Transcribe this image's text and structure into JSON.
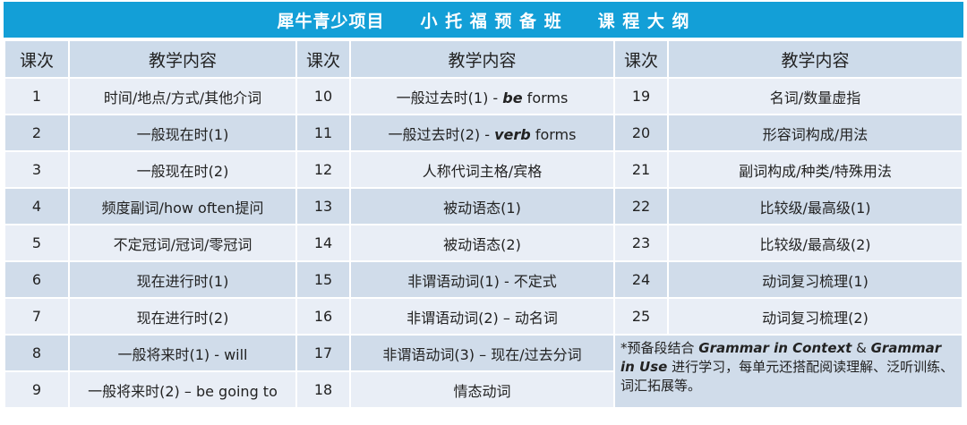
{
  "title": {
    "program": "犀牛青少项目",
    "course": "小 托 福 预 备 班",
    "outline": "课 程 大 纲"
  },
  "headers": {
    "lesson": "课次",
    "content": "教学内容"
  },
  "colors": {
    "title_bg": "#139fd7",
    "header_bg": "#cddbea",
    "row_light": "#e9eef6",
    "row_dark": "#d0dcea"
  },
  "rows": [
    [
      {
        "n": "1",
        "c": "时间/地点/方式/其他介词"
      },
      {
        "n": "10",
        "c": "一般过去时(1) - ",
        "em": "be",
        "rest": " forms"
      },
      {
        "n": "19",
        "c": "名词/数量虚指"
      }
    ],
    [
      {
        "n": "2",
        "c": "一般现在时(1)"
      },
      {
        "n": "11",
        "c": "一般过去时(2) - ",
        "em": "verb",
        "rest": " forms"
      },
      {
        "n": "20",
        "c": "形容词构成/用法"
      }
    ],
    [
      {
        "n": "3",
        "c": "一般现在时(2)"
      },
      {
        "n": "12",
        "c": "人称代词主格/宾格"
      },
      {
        "n": "21",
        "c": "副词构成/种类/特殊用法"
      }
    ],
    [
      {
        "n": "4",
        "c": "频度副词/how often提问"
      },
      {
        "n": "13",
        "c": "被动语态(1)"
      },
      {
        "n": "22",
        "c": "比较级/最高级(1)"
      }
    ],
    [
      {
        "n": "5",
        "c": "不定冠词/冠词/零冠词"
      },
      {
        "n": "14",
        "c": "被动语态(2)"
      },
      {
        "n": "23",
        "c": "比较级/最高级(2)"
      }
    ],
    [
      {
        "n": "6",
        "c": "现在进行时(1)"
      },
      {
        "n": "15",
        "c": "非谓语动词(1) - 不定式"
      },
      {
        "n": "24",
        "c": "动词复习梳理(1)"
      }
    ],
    [
      {
        "n": "7",
        "c": "现在进行时(2)"
      },
      {
        "n": "16",
        "c": "非谓语动词(2) – 动名词"
      },
      {
        "n": "25",
        "c": "动词复习梳理(2)"
      }
    ],
    [
      {
        "n": "8",
        "c": "一般将来时(1) - will"
      },
      {
        "n": "17",
        "c": "非谓语动词(3) – 现在/过去分词"
      }
    ],
    [
      {
        "n": "9",
        "c": "一般将来时(2) – be going to"
      },
      {
        "n": "18",
        "c": "情态动词"
      }
    ]
  ],
  "note": {
    "p1": "*预备段结合 ",
    "b1": "Grammar in Context",
    "p2": " & ",
    "b2": "Grammar in Use",
    "p3": " 进行学习，每单元还搭配阅读理解、泛听训练、词汇拓展等。"
  }
}
